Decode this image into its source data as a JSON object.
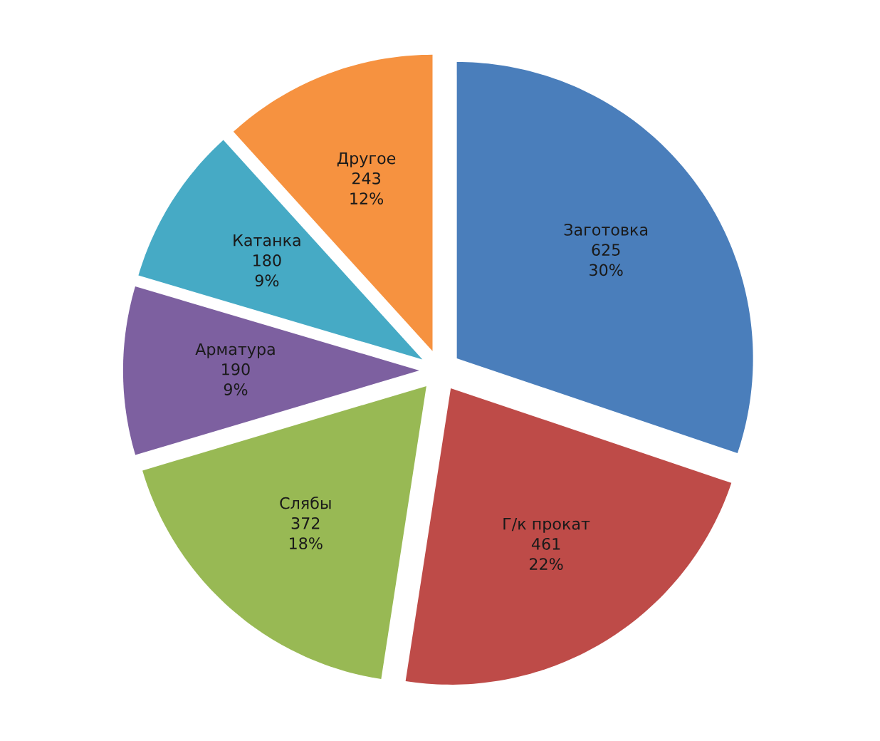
{
  "chart_data": {
    "type": "pie",
    "categories": [
      "Заготовка",
      "Г/к прокат",
      "Слябы",
      "Арматура",
      "Катанка",
      "Другое"
    ],
    "values": [
      625,
      461,
      372,
      190,
      180,
      243
    ],
    "colors": [
      "#4a7ebb",
      "#be4b48",
      "#98b954",
      "#7d60a0",
      "#46aac5",
      "#f69240"
    ],
    "value_labels": [
      "625\n30%",
      "461\n22%",
      "372\n18%",
      "190\n9%",
      "180\n9%",
      "243\n12%"
    ],
    "legend": false
  }
}
